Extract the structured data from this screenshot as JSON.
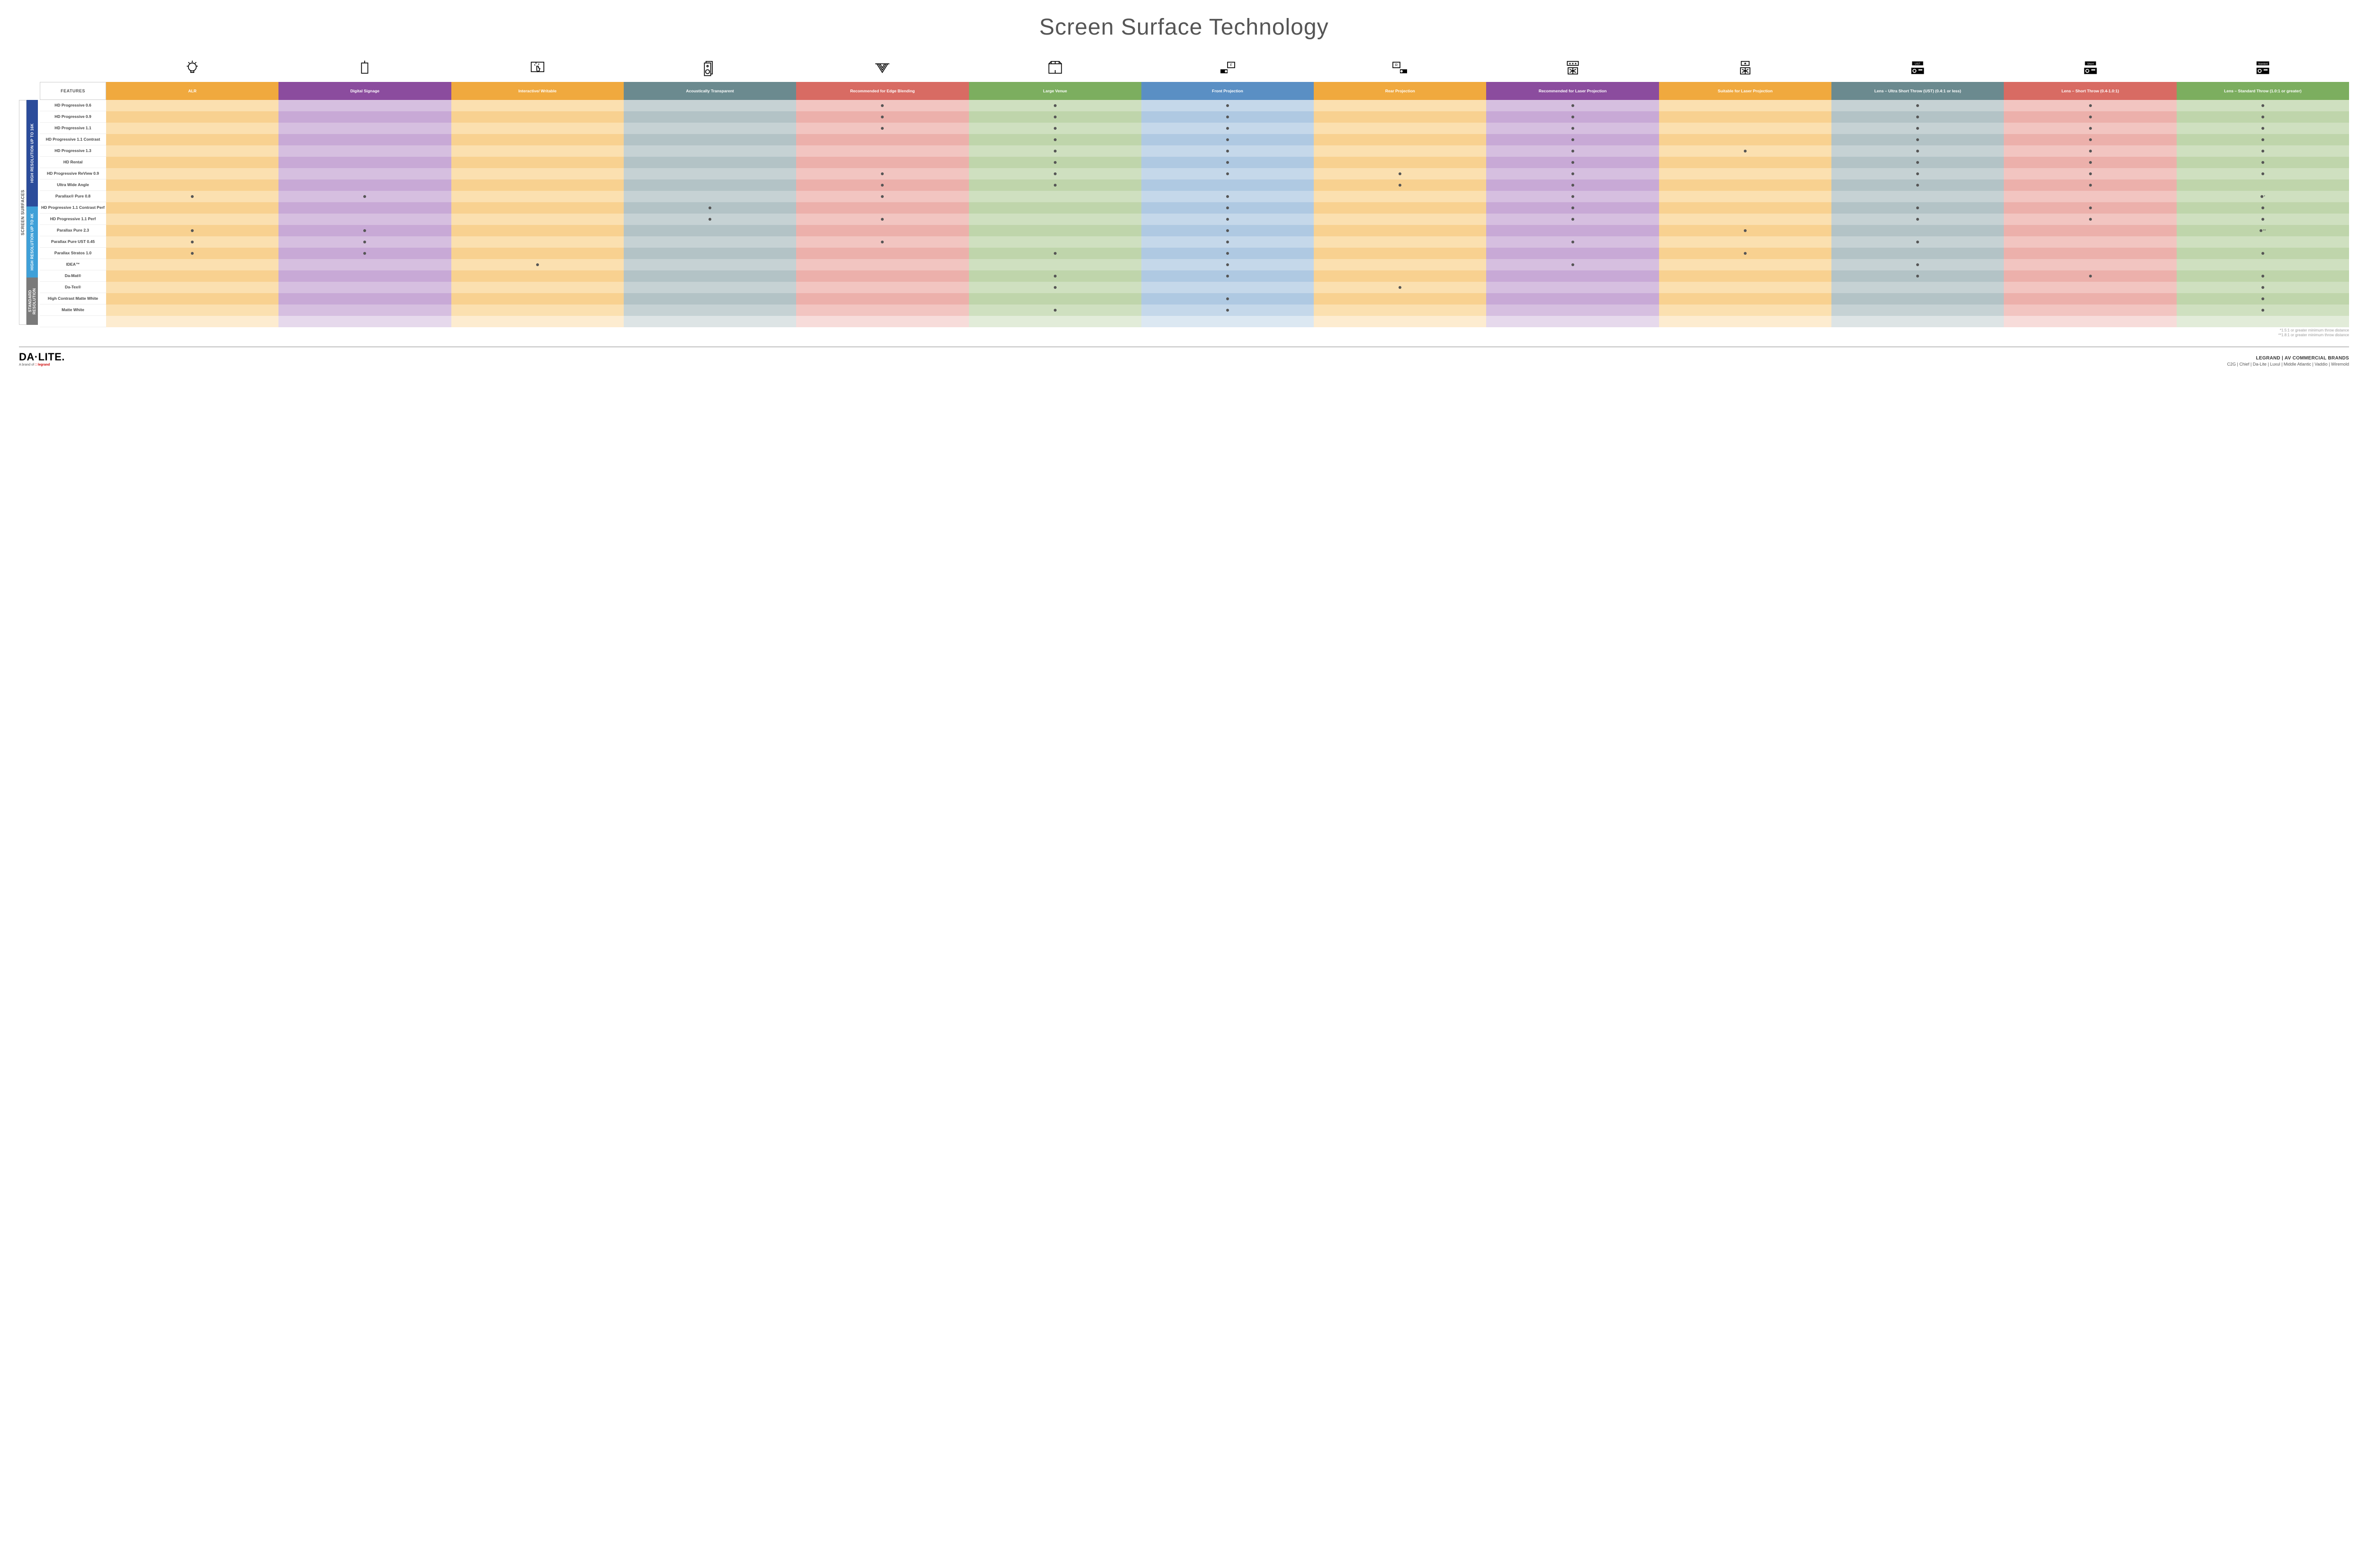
{
  "title": "Screen Surface Technology",
  "columns": [
    {
      "key": "alr",
      "label": "ALR",
      "color": "#f0a93e"
    },
    {
      "key": "signage",
      "label": "Digital Signage",
      "color": "#8b4c9e"
    },
    {
      "key": "interactive",
      "label": "Interactive/ Writable",
      "color": "#f0a93e"
    },
    {
      "key": "acoustic",
      "label": "Acoustically Transparent",
      "color": "#6b8a8f"
    },
    {
      "key": "edge",
      "label": "Recommended for Edge Blending",
      "color": "#d86b63"
    },
    {
      "key": "large",
      "label": "Large Venue",
      "color": "#7cae5f"
    },
    {
      "key": "front",
      "label": "Front Projection",
      "color": "#5a8fc4"
    },
    {
      "key": "rear",
      "label": "Rear Projection",
      "color": "#f0a93e"
    },
    {
      "key": "reclaser",
      "label": "Recommended for Laser Projection",
      "color": "#8b4c9e"
    },
    {
      "key": "suitlaser",
      "label": "Suitable for Laser Projection",
      "color": "#f0a93e"
    },
    {
      "key": "ust",
      "label": "Lens – Ultra Short Throw (UST) (0.4:1 or less)",
      "color": "#6b8a8f"
    },
    {
      "key": "short",
      "label": "Lens – Short Throw (0.4-1.0:1)",
      "color": "#d86b63"
    },
    {
      "key": "std",
      "label": "Lens – Standard Throw (1.0:1 or greater)",
      "color": "#7cae5f"
    }
  ],
  "col_tints": {
    "alr": [
      "#fbe0b0",
      "#f8d190"
    ],
    "signage": [
      "#d6bfe0",
      "#c8a9d6"
    ],
    "interactive": [
      "#fbe0b0",
      "#f8d190"
    ],
    "acoustic": [
      "#c6d2d4",
      "#b3c3c6"
    ],
    "edge": [
      "#f2c5c1",
      "#ecb0ab"
    ],
    "large": [
      "#cfe0c0",
      "#bfd5ab"
    ],
    "front": [
      "#c5d8ea",
      "#afc9e2"
    ],
    "rear": [
      "#fbe0b0",
      "#f8d190"
    ],
    "reclaser": [
      "#d6bfe0",
      "#c8a9d6"
    ],
    "suitlaser": [
      "#fbe0b0",
      "#f8d190"
    ],
    "ust": [
      "#c6d2d4",
      "#b3c3c6"
    ],
    "short": [
      "#f2c5c1",
      "#ecb0ab"
    ],
    "std": [
      "#cfe0c0",
      "#bfd5ab"
    ]
  },
  "groups": [
    {
      "label": "HIGH RESOLUTION UP TO 16K",
      "color": "#2b4c9b",
      "rows": [
        {
          "name": "HD Progressive 0.6",
          "dots": {
            "edge": "",
            "large": "",
            "front": "",
            "reclaser": "",
            "ust": "",
            "short": "",
            "std": ""
          }
        },
        {
          "name": "HD Progressive 0.9",
          "dots": {
            "edge": "",
            "large": "",
            "front": "",
            "reclaser": "",
            "ust": "",
            "short": "",
            "std": ""
          }
        },
        {
          "name": "HD Progressive 1.1",
          "dots": {
            "edge": "",
            "large": "",
            "front": "",
            "reclaser": "",
            "ust": "",
            "short": "",
            "std": ""
          }
        },
        {
          "name": "HD Progressive 1.1 Contrast",
          "dots": {
            "large": "",
            "front": "",
            "reclaser": "",
            "ust": "",
            "short": "",
            "std": ""
          }
        },
        {
          "name": "HD Progressive 1.3",
          "dots": {
            "large": "",
            "front": "",
            "reclaser": "",
            "suitlaser": "",
            "ust": "",
            "short": "",
            "std": ""
          }
        },
        {
          "name": "HD Rental",
          "dots": {
            "large": "",
            "front": "",
            "reclaser": "",
            "ust": "",
            "short": "",
            "std": ""
          }
        },
        {
          "name": "HD Progressive ReView 0.9",
          "dots": {
            "edge": "",
            "large": "",
            "front": "",
            "rear": "",
            "reclaser": "",
            "ust": "",
            "short": "",
            "std": ""
          }
        },
        {
          "name": "Ultra Wide Angle",
          "dots": {
            "edge": "",
            "large": "",
            "rear": "",
            "reclaser": "",
            "ust": "",
            "short": ""
          }
        },
        {
          "name": "Parallax® Pure 0.8",
          "dots": {
            "alr": "",
            "signage": "",
            "edge": "",
            "front": "",
            "reclaser": "",
            "std": "*"
          }
        }
      ]
    },
    {
      "label": "HIGH RESOLUTION UP TO 4K",
      "color": "#3fa0d8",
      "rows": [
        {
          "name": "HD Progressive 1.1 Contrast Perf",
          "dots": {
            "acoustic": "",
            "front": "",
            "reclaser": "",
            "ust": "",
            "short": "",
            "std": ""
          }
        },
        {
          "name": "HD Progressive 1.1 Perf",
          "dots": {
            "acoustic": "",
            "edge": "",
            "front": "",
            "reclaser": "",
            "ust": "",
            "short": "",
            "std": ""
          }
        },
        {
          "name": "Parallax Pure 2.3",
          "dots": {
            "alr": "",
            "signage": "",
            "front": "",
            "suitlaser": "",
            "std": "**"
          }
        },
        {
          "name": "Parallax Pure UST 0.45",
          "dots": {
            "alr": "",
            "signage": "",
            "edge": "",
            "front": "",
            "reclaser": "",
            "ust": ""
          }
        },
        {
          "name": "Parallax Stratos 1.0",
          "dots": {
            "alr": "",
            "signage": "",
            "large": "",
            "front": "",
            "suitlaser": "",
            "std": ""
          }
        },
        {
          "name": "IDEA™",
          "dots": {
            "interactive": "",
            "front": "",
            "reclaser": "",
            "ust": ""
          }
        }
      ]
    },
    {
      "label": "STANDARD RESOLUTION",
      "color": "#7a7a7a",
      "rows": [
        {
          "name": "Da-Mat®",
          "dots": {
            "large": "",
            "front": "",
            "ust": "",
            "short": "",
            "std": ""
          }
        },
        {
          "name": "Da-Tex®",
          "dots": {
            "large": "",
            "rear": "",
            "std": ""
          }
        },
        {
          "name": "High Contrast Matte White",
          "dots": {
            "front": "",
            "std": ""
          }
        },
        {
          "name": "Matte White",
          "dots": {
            "large": "",
            "front": "",
            "std": ""
          }
        }
      ]
    }
  ],
  "side_outer": "SCREEN SURFACES",
  "features_label": "FEATURES",
  "footnotes": [
    "*1.5:1 or greater minimum throw distance",
    "**1.8:1 or greater minimum throw distance"
  ],
  "footer": {
    "logo": "DA·LITE.",
    "logo_sub_pre": "A brand of ",
    "logo_sub_brand": "legrand",
    "brands_title": "LEGRAND | AV COMMERCIAL BRANDS",
    "brands": "C2G  |  Chief  |  Da-Lite  |  Luxul  |  Middle Atlantic  |  Vaddio  |  Wiremold"
  },
  "icons": [
    "bulb",
    "signage",
    "touch",
    "speaker",
    "blend",
    "venue",
    "front",
    "rear",
    "reclaser",
    "suitlaser",
    "ust",
    "short",
    "standard"
  ]
}
